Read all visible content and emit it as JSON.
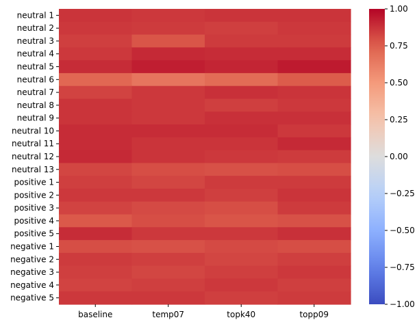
{
  "chart_data": {
    "type": "heatmap",
    "rows": [
      "neutral 1",
      "neutral 2",
      "neutral 3",
      "neutral 4",
      "neutral 5",
      "neutral 6",
      "neutral 7",
      "neutral 8",
      "neutral 9",
      "neutral 10",
      "neutral 11",
      "neutral 12",
      "neutral 13",
      "positive 1",
      "positive 2",
      "positive 3",
      "positive 4",
      "positive 5",
      "negative 1",
      "negative 2",
      "negative 3",
      "negative 4",
      "negative 5"
    ],
    "columns": [
      "baseline",
      "temp07",
      "topk40",
      "topp09"
    ],
    "values": [
      [
        0.87,
        0.86,
        0.87,
        0.87
      ],
      [
        0.86,
        0.85,
        0.84,
        0.86
      ],
      [
        0.84,
        0.78,
        0.85,
        0.85
      ],
      [
        0.86,
        0.9,
        0.89,
        0.89
      ],
      [
        0.89,
        0.93,
        0.91,
        0.94
      ],
      [
        0.72,
        0.66,
        0.7,
        0.76
      ],
      [
        0.83,
        0.86,
        0.88,
        0.87
      ],
      [
        0.87,
        0.86,
        0.84,
        0.86
      ],
      [
        0.87,
        0.86,
        0.88,
        0.88
      ],
      [
        0.89,
        0.89,
        0.89,
        0.86
      ],
      [
        0.89,
        0.87,
        0.87,
        0.9
      ],
      [
        0.9,
        0.87,
        0.86,
        0.85
      ],
      [
        0.82,
        0.8,
        0.79,
        0.8
      ],
      [
        0.84,
        0.82,
        0.85,
        0.85
      ],
      [
        0.86,
        0.86,
        0.84,
        0.87
      ],
      [
        0.83,
        0.81,
        0.8,
        0.85
      ],
      [
        0.77,
        0.8,
        0.78,
        0.79
      ],
      [
        0.89,
        0.86,
        0.86,
        0.88
      ],
      [
        0.8,
        0.79,
        0.81,
        0.8
      ],
      [
        0.85,
        0.84,
        0.82,
        0.84
      ],
      [
        0.84,
        0.82,
        0.84,
        0.86
      ],
      [
        0.83,
        0.84,
        0.86,
        0.84
      ],
      [
        0.86,
        0.86,
        0.84,
        0.85
      ]
    ],
    "vmin": -1.0,
    "vmax": 1.0,
    "colormap": "coolwarm",
    "colorbar_ticks": [
      "1.00",
      "0.75",
      "0.50",
      "0.25",
      "0.00",
      "−0.25",
      "−0.50",
      "−0.75",
      "−1.00"
    ],
    "colorbar_values": [
      1.0,
      0.75,
      0.5,
      0.25,
      0.0,
      -0.25,
      -0.5,
      -0.75,
      -1.0
    ]
  }
}
